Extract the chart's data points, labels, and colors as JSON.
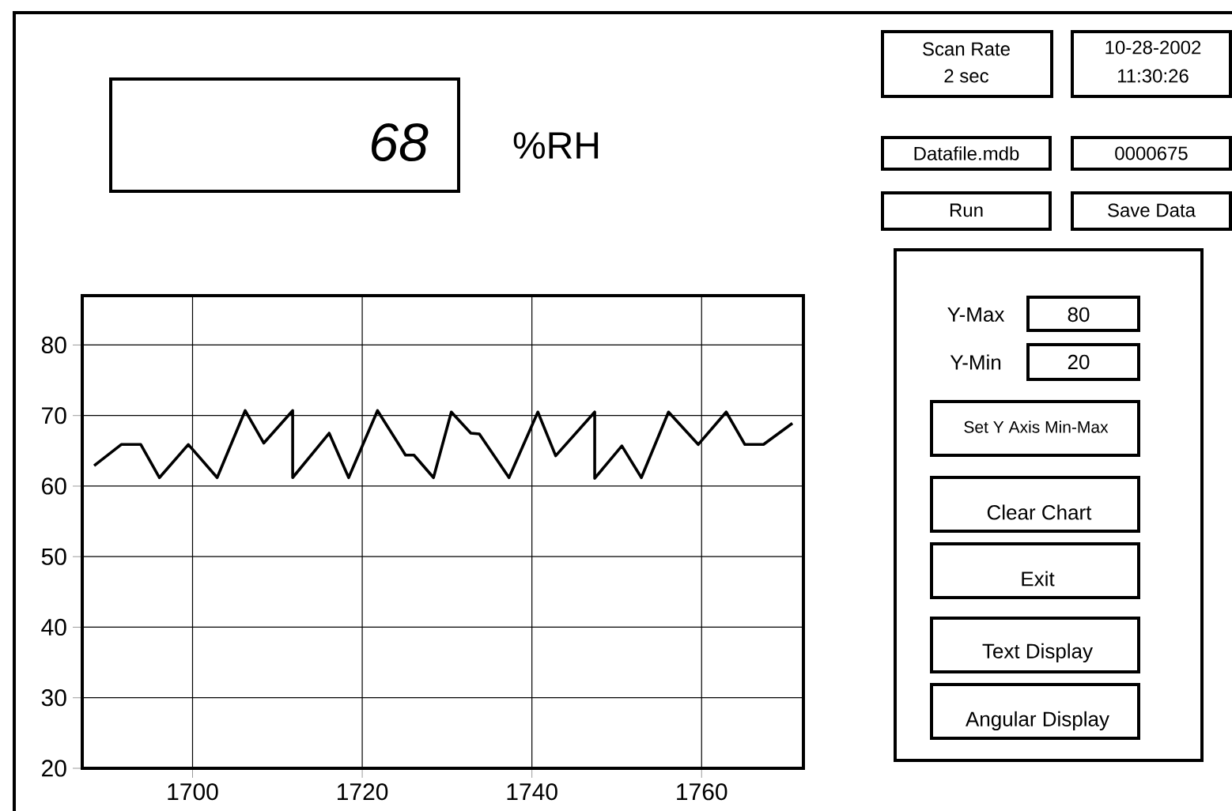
{
  "chart_data": {
    "type": "line",
    "x": [
      1688.4,
      1691.6,
      1693.9,
      1696.1,
      1699.5,
      1702.9,
      1706.2,
      1708.4,
      1711.8,
      1711.8,
      1716.1,
      1718.4,
      1721.8,
      1725.1,
      1726.1,
      1728.4,
      1730.5,
      1732.8,
      1733.8,
      1737.3,
      1740.7,
      1742.8,
      1747.4,
      1747.4,
      1750.6,
      1752.9,
      1756.1,
      1759.6,
      1762.9,
      1765.1,
      1767.3,
      1770.7
    ],
    "values": [
      62.9,
      65.9,
      65.9,
      61.2,
      65.9,
      61.2,
      70.7,
      66.1,
      70.7,
      61.2,
      67.5,
      61.2,
      70.7,
      64.4,
      64.4,
      61.2,
      70.5,
      67.5,
      67.4,
      61.2,
      70.5,
      64.3,
      70.5,
      61.1,
      65.7,
      61.2,
      70.5,
      65.9,
      70.5,
      65.9,
      65.9,
      68.9
    ],
    "color": "#000000",
    "xlim": [
      1687,
      1772
    ],
    "ylim": [
      20,
      87
    ],
    "xticks": [
      1700,
      1720,
      1740,
      1760
    ],
    "yticks": [
      20,
      30,
      40,
      50,
      60,
      70,
      80
    ],
    "grid": true,
    "annotations": [
      "68",
      "%RH",
      "Scan Rate",
      "2 sec",
      "10-28-2002",
      "11:30:26",
      "Datafile.mdb",
      "0000675",
      "Run",
      "Save Data",
      "Y-Max",
      "80",
      "Y-Min",
      "20",
      "Set Y Axis Min-Max",
      "Clear Chart",
      "Exit",
      "Text Display",
      "Angular Display"
    ]
  }
}
